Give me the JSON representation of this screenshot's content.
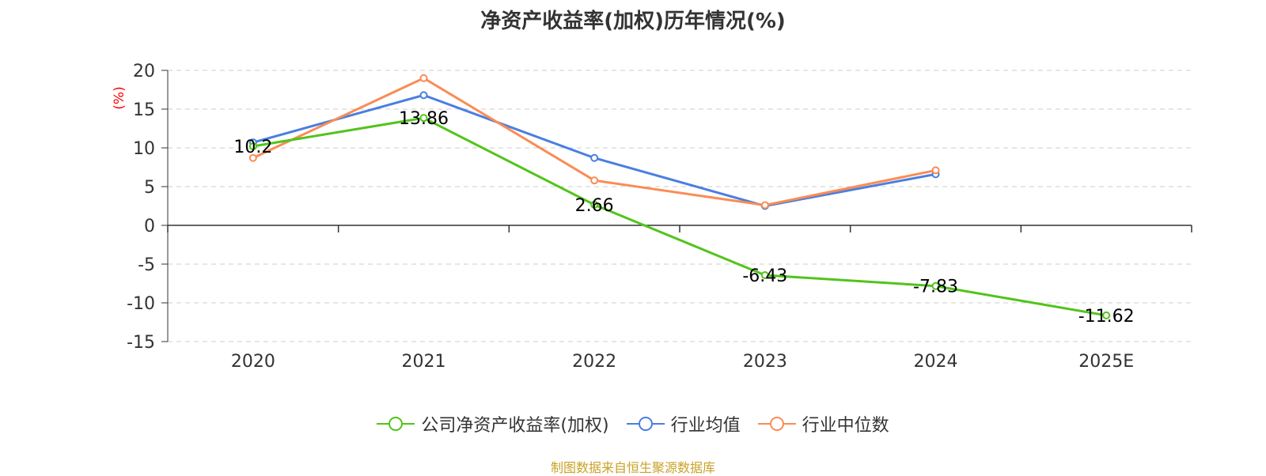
{
  "chart_data": {
    "type": "line",
    "title": "净资产收益率(加权)历年情况(%)",
    "ylabel": "(%)",
    "xlabel": "",
    "categories": [
      "2020",
      "2021",
      "2022",
      "2023",
      "2024",
      "2025E"
    ],
    "ylim": [
      -15,
      20
    ],
    "yticks": [
      20,
      15,
      10,
      5,
      0,
      -5,
      -10,
      -15
    ],
    "grid": true,
    "legend_position": "bottom",
    "series": [
      {
        "name": "公司净资产收益率(加权)",
        "color": "#52c41a",
        "values": [
          10.2,
          13.86,
          2.66,
          -6.43,
          -7.83,
          -11.62
        ],
        "labels": [
          "10.2",
          "13.86",
          "2.66",
          "-6.43",
          "-7.83",
          "-11.62"
        ]
      },
      {
        "name": "行业均值",
        "color": "#4a7fe0",
        "values": [
          10.7,
          16.8,
          8.7,
          2.5,
          6.6,
          null
        ]
      },
      {
        "name": "行业中位数",
        "color": "#fa8c55",
        "values": [
          8.7,
          19.0,
          5.8,
          2.6,
          7.1,
          null
        ]
      }
    ]
  },
  "source": "制图数据来自恒生聚源数据库"
}
